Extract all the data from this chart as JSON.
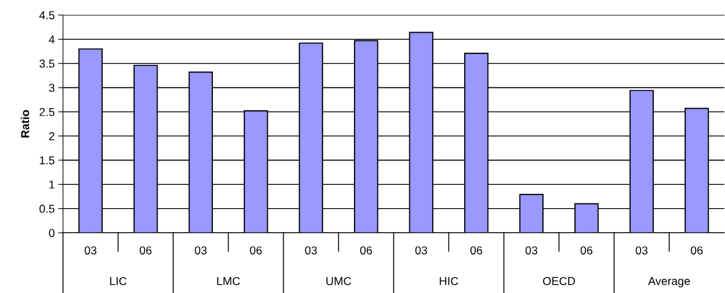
{
  "chart_data": {
    "type": "bar",
    "ylabel": "Ratio",
    "categories": [
      "03",
      "06",
      "03",
      "06",
      "03",
      "06",
      "03",
      "06",
      "03",
      "06",
      "03",
      "06"
    ],
    "values": [
      3.8,
      3.46,
      3.32,
      2.52,
      3.92,
      3.97,
      4.14,
      3.71,
      0.79,
      0.6,
      2.94,
      2.57
    ],
    "color": "#9999ff",
    "ylim": [
      0,
      4.5
    ],
    "yticks": [
      0,
      0.5,
      1,
      1.5,
      2,
      2.5,
      3,
      3.5,
      4,
      4.5
    ],
    "grid": "y",
    "legend": false,
    "annotations": [
      "LIC",
      "LMC",
      "UMC",
      "HIC",
      "OECD",
      "Average"
    ]
  }
}
